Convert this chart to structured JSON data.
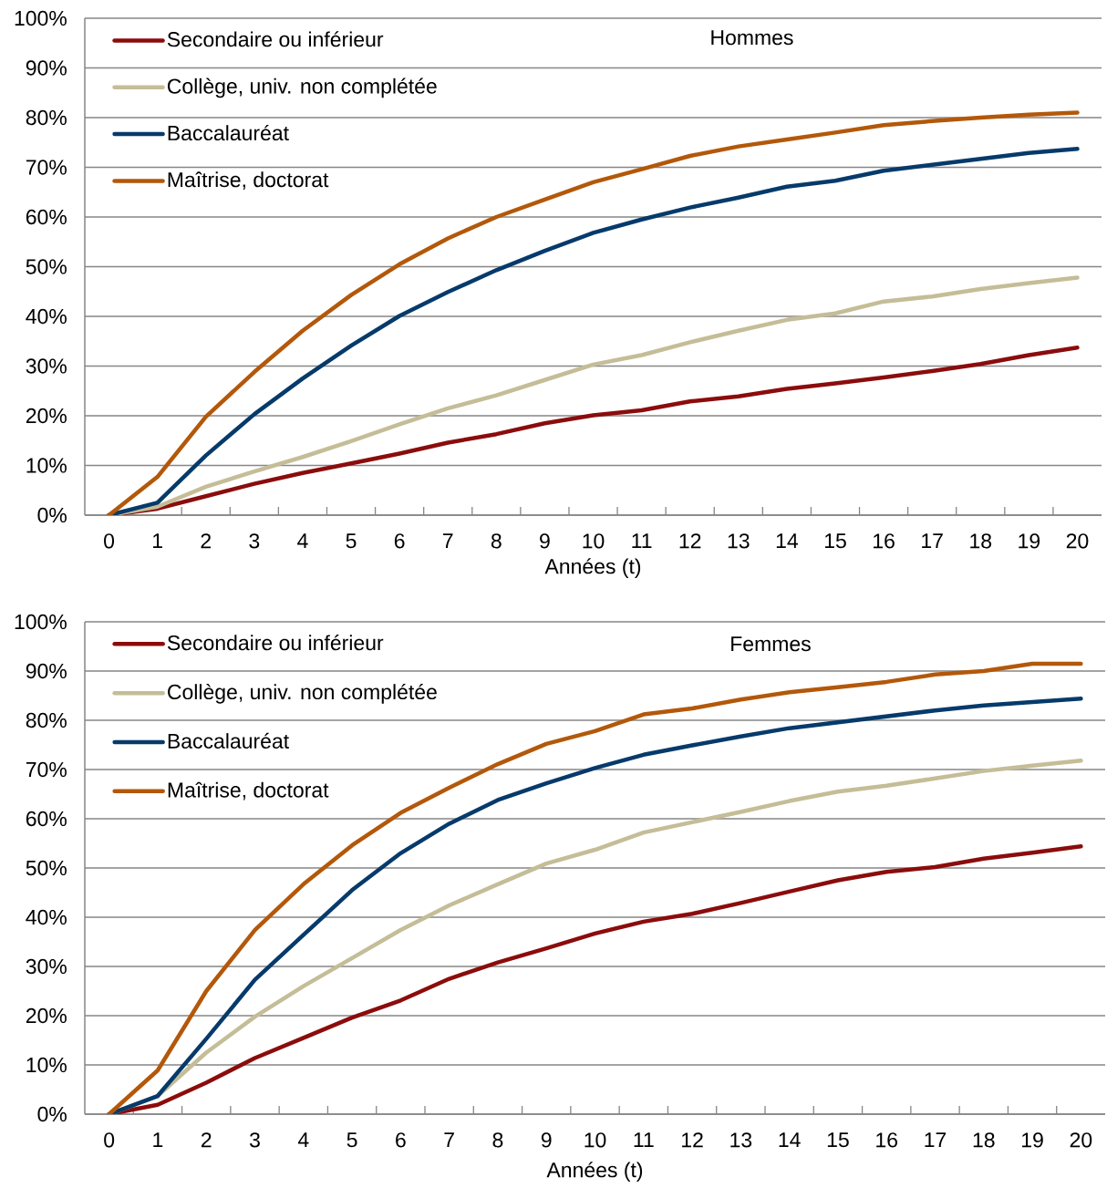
{
  "chart_data": [
    {
      "type": "line",
      "title": "Hommes",
      "xlabel": "Années (t)",
      "categories": [
        "0",
        "1",
        "2",
        "3",
        "4",
        "5",
        "6",
        "7",
        "8",
        "9",
        "10",
        "11",
        "12",
        "13",
        "14",
        "15",
        "16",
        "17",
        "18",
        "19",
        "20"
      ],
      "ylim": [
        0,
        100
      ],
      "yticks": [
        {
          "value": 0,
          "label": "0%"
        },
        {
          "value": 10,
          "label": "10%"
        },
        {
          "value": 20,
          "label": "20%"
        },
        {
          "value": 30,
          "label": "30%"
        },
        {
          "value": 40,
          "label": "40%"
        },
        {
          "value": 50,
          "label": "50%"
        },
        {
          "value": 60,
          "label": "60%"
        },
        {
          "value": 70,
          "label": "70%"
        },
        {
          "value": 80,
          "label": "80%"
        },
        {
          "value": 90,
          "label": "90%"
        },
        {
          "value": 100,
          "label": "100%"
        }
      ],
      "grid": "y",
      "legend": "top left",
      "series": [
        {
          "name": "Secondaire ou inférieur",
          "color": "#8b0c0c",
          "values": [
            0,
            1.3,
            3.8,
            6.3,
            8.5,
            10.4,
            12.4,
            14.6,
            16.3,
            18.5,
            20.1,
            21.1,
            22.9,
            23.9,
            25.4,
            26.5,
            27.7,
            29.0,
            30.4,
            32.2,
            33.7
          ]
        },
        {
          "name": "Collège, univ. non complétée",
          "color": "#c4bd97",
          "values": [
            0,
            1.7,
            5.7,
            8.8,
            11.7,
            14.9,
            18.3,
            21.5,
            24.1,
            27.2,
            30.3,
            32.2,
            34.8,
            37.1,
            39.3,
            40.6,
            43.0,
            44.0,
            45.5,
            46.7,
            47.8
          ]
        },
        {
          "name": "Baccalauréat",
          "color": "#063a6b",
          "values": [
            0,
            2.5,
            12.0,
            20.3,
            27.5,
            34.1,
            40.1,
            44.9,
            49.3,
            53.2,
            56.8,
            59.5,
            61.9,
            63.9,
            66.1,
            67.3,
            69.3,
            70.5,
            71.7,
            72.9,
            73.7
          ]
        },
        {
          "name": "Maîtrise, doctorat",
          "color": "#b3580a",
          "values": [
            0,
            7.7,
            19.8,
            28.8,
            37.1,
            44.3,
            50.5,
            55.7,
            60.0,
            63.5,
            67.0,
            69.6,
            72.3,
            74.2,
            75.6,
            77.0,
            78.5,
            79.3,
            80.0,
            80.6,
            81.0
          ]
        }
      ]
    },
    {
      "type": "line",
      "title": "Femmes",
      "xlabel": "Années (t)",
      "categories": [
        "0",
        "1",
        "2",
        "3",
        "4",
        "5",
        "6",
        "7",
        "8",
        "9",
        "10",
        "11",
        "12",
        "13",
        "14",
        "15",
        "16",
        "17",
        "18",
        "19",
        "20"
      ],
      "ylim": [
        0,
        100
      ],
      "yticks": [
        {
          "value": 0,
          "label": "0%"
        },
        {
          "value": 10,
          "label": "10%"
        },
        {
          "value": 20,
          "label": "20%"
        },
        {
          "value": 30,
          "label": "30%"
        },
        {
          "value": 40,
          "label": "40%"
        },
        {
          "value": 50,
          "label": "50%"
        },
        {
          "value": 60,
          "label": "60%"
        },
        {
          "value": 70,
          "label": "70%"
        },
        {
          "value": 80,
          "label": "80%"
        },
        {
          "value": 90,
          "label": "90%"
        },
        {
          "value": 100,
          "label": "100%"
        }
      ],
      "grid": "y",
      "legend": "top left",
      "series": [
        {
          "name": "Secondaire ou inférieur",
          "color": "#8b0c0c",
          "values": [
            0,
            1.9,
            6.4,
            11.4,
            15.5,
            19.6,
            23.1,
            27.5,
            30.8,
            33.7,
            36.7,
            39.1,
            40.7,
            42.9,
            45.2,
            47.5,
            49.2,
            50.2,
            51.9,
            53.1,
            54.4
          ]
        },
        {
          "name": "Collège, univ. non complétée",
          "color": "#c4bd97",
          "values": [
            0,
            3.7,
            12.5,
            19.8,
            26.0,
            31.7,
            37.4,
            42.4,
            46.7,
            50.9,
            53.7,
            57.2,
            59.3,
            61.4,
            63.6,
            65.5,
            66.7,
            68.2,
            69.7,
            70.8,
            71.8
          ]
        },
        {
          "name": "Baccalauréat",
          "color": "#063a6b",
          "values": [
            0,
            3.7,
            15.3,
            27.3,
            36.4,
            45.5,
            53.0,
            59.0,
            63.8,
            67.2,
            70.3,
            73.0,
            74.9,
            76.7,
            78.4,
            79.6,
            80.8,
            82.0,
            83.0,
            83.7,
            84.4
          ]
        },
        {
          "name": "Maîtrise, doctorat",
          "color": "#b3580a",
          "values": [
            0,
            8.9,
            25.0,
            37.4,
            46.7,
            54.6,
            61.2,
            66.3,
            71.1,
            75.2,
            77.8,
            81.2,
            82.4,
            84.2,
            85.7,
            86.7,
            87.8,
            89.3,
            90.0,
            91.5,
            91.5
          ]
        }
      ]
    }
  ]
}
